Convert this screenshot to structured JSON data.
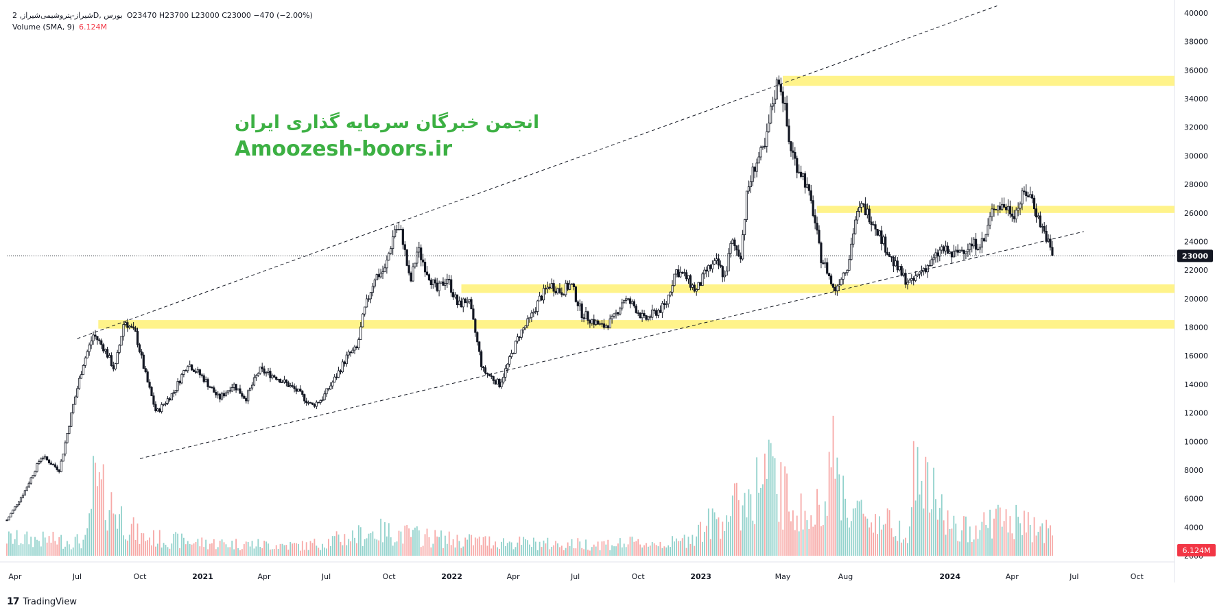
{
  "legend": {
    "symbol_line": "شیراز-پتروشیمی‌شیراز, 2D, بورس",
    "ohlc": "O23470  H23700  L23000  C23000  −470 (−2.00%)",
    "volume_label": "Volume (SMA, 9)",
    "volume_value": "6.124M"
  },
  "watermark": {
    "line1": "انجمن خبرگان سرمایه گذاری ایران",
    "line2": "Amoozesh-boors.ir"
  },
  "footer": {
    "brand": "TradingView"
  },
  "badges": {
    "last_price": "23000",
    "volume": "6.124M"
  },
  "colors": {
    "up": "#26a69a",
    "down": "#ef5350",
    "candle": "#131722",
    "zone": "#fff176",
    "background": "#ffffff",
    "badge_volume": "#f23645",
    "watermark": "#3cb043"
  },
  "chart_data": {
    "type": "candlestick",
    "interval": "2D",
    "last_price": 23000,
    "x_axis": {
      "range": [
        "2020-03-20",
        "2024-11-25"
      ],
      "ticks": [
        {
          "label": "Apr",
          "date": "2020-04-01"
        },
        {
          "label": "Jul",
          "date": "2020-07-01"
        },
        {
          "label": "Oct",
          "date": "2020-10-01"
        },
        {
          "label": "2021",
          "date": "2021-01-01"
        },
        {
          "label": "Apr",
          "date": "2021-04-01"
        },
        {
          "label": "Jul",
          "date": "2021-07-01"
        },
        {
          "label": "Oct",
          "date": "2021-10-01"
        },
        {
          "label": "2022",
          "date": "2022-01-01"
        },
        {
          "label": "Apr",
          "date": "2022-04-01"
        },
        {
          "label": "Jul",
          "date": "2022-07-01"
        },
        {
          "label": "Oct",
          "date": "2022-10-01"
        },
        {
          "label": "2023",
          "date": "2023-01-01"
        },
        {
          "label": "May",
          "date": "2023-05-01"
        },
        {
          "label": "Aug",
          "date": "2023-08-01"
        },
        {
          "label": "2024",
          "date": "2024-01-01"
        },
        {
          "label": "Apr",
          "date": "2024-04-01"
        },
        {
          "label": "Jul",
          "date": "2024-07-01"
        },
        {
          "label": "Oct",
          "date": "2024-10-01"
        }
      ]
    },
    "y_axis": {
      "range": [
        2000,
        40000
      ],
      "ticks": [
        2000,
        4000,
        6000,
        8000,
        10000,
        12000,
        14000,
        16000,
        18000,
        20000,
        22000,
        24000,
        26000,
        28000,
        30000,
        32000,
        34000,
        36000,
        38000,
        40000
      ]
    },
    "price_path": [
      [
        "2020-03-20",
        4500
      ],
      [
        "2020-04-15",
        6500
      ],
      [
        "2020-05-10",
        9000
      ],
      [
        "2020-06-05",
        8000
      ],
      [
        "2020-06-25",
        12500
      ],
      [
        "2020-07-10",
        15500
      ],
      [
        "2020-07-25",
        17500
      ],
      [
        "2020-08-10",
        16500
      ],
      [
        "2020-08-25",
        15000
      ],
      [
        "2020-09-08",
        18500
      ],
      [
        "2020-09-25",
        17500
      ],
      [
        "2020-10-10",
        14500
      ],
      [
        "2020-10-25",
        12000
      ],
      [
        "2020-11-20",
        13500
      ],
      [
        "2020-12-10",
        15500
      ],
      [
        "2021-01-01",
        14500
      ],
      [
        "2021-01-25",
        13000
      ],
      [
        "2021-02-15",
        14000
      ],
      [
        "2021-03-05",
        13000
      ],
      [
        "2021-03-25",
        15000
      ],
      [
        "2021-04-20",
        14500
      ],
      [
        "2021-05-20",
        13500
      ],
      [
        "2021-06-10",
        12500
      ],
      [
        "2021-06-25",
        13000
      ],
      [
        "2021-07-15",
        14500
      ],
      [
        "2021-08-01",
        16000
      ],
      [
        "2021-08-15",
        16500
      ],
      [
        "2021-08-25",
        19000
      ],
      [
        "2021-09-10",
        21500
      ],
      [
        "2021-09-25",
        22000
      ],
      [
        "2021-10-10",
        25000
      ],
      [
        "2021-10-20",
        24500
      ],
      [
        "2021-11-01",
        21000
      ],
      [
        "2021-11-12",
        23500
      ],
      [
        "2021-11-25",
        22000
      ],
      [
        "2021-12-10",
        20500
      ],
      [
        "2021-12-25",
        21500
      ],
      [
        "2022-01-10",
        19500
      ],
      [
        "2022-01-25",
        20000
      ],
      [
        "2022-02-05",
        17500
      ],
      [
        "2022-02-15",
        15000
      ],
      [
        "2022-02-28",
        14500
      ],
      [
        "2022-03-12",
        14000
      ],
      [
        "2022-03-25",
        15500
      ],
      [
        "2022-04-10",
        17500
      ],
      [
        "2022-04-25",
        18500
      ],
      [
        "2022-05-10",
        20000
      ],
      [
        "2022-05-25",
        21000
      ],
      [
        "2022-06-10",
        20500
      ],
      [
        "2022-06-25",
        21000
      ],
      [
        "2022-07-10",
        19000
      ],
      [
        "2022-07-25",
        18500
      ],
      [
        "2022-08-10",
        18000
      ],
      [
        "2022-08-25",
        18500
      ],
      [
        "2022-09-10",
        20000
      ],
      [
        "2022-09-25",
        19500
      ],
      [
        "2022-10-10",
        18500
      ],
      [
        "2022-10-25",
        19000
      ],
      [
        "2022-11-10",
        19500
      ],
      [
        "2022-11-25",
        22000
      ],
      [
        "2022-12-10",
        21500
      ],
      [
        "2022-12-25",
        20500
      ],
      [
        "2023-01-10",
        22000
      ],
      [
        "2023-01-25",
        22500
      ],
      [
        "2023-02-05",
        21500
      ],
      [
        "2023-02-15",
        24000
      ],
      [
        "2023-02-28",
        23000
      ],
      [
        "2023-03-10",
        27500
      ],
      [
        "2023-03-22",
        29500
      ],
      [
        "2023-04-05",
        30500
      ],
      [
        "2023-04-15",
        33500
      ],
      [
        "2023-04-25",
        35500
      ],
      [
        "2023-05-02",
        34000
      ],
      [
        "2023-05-10",
        31000
      ],
      [
        "2023-05-20",
        29500
      ],
      [
        "2023-06-01",
        28500
      ],
      [
        "2023-06-15",
        26000
      ],
      [
        "2023-06-25",
        23000
      ],
      [
        "2023-07-05",
        22000
      ],
      [
        "2023-07-15",
        20500
      ],
      [
        "2023-07-25",
        21500
      ],
      [
        "2023-08-05",
        22500
      ],
      [
        "2023-08-15",
        25500
      ],
      [
        "2023-08-25",
        26500
      ],
      [
        "2023-09-10",
        25500
      ],
      [
        "2023-09-25",
        24000
      ],
      [
        "2023-10-10",
        22500
      ],
      [
        "2023-10-25",
        21500
      ],
      [
        "2023-11-05",
        21000
      ],
      [
        "2023-11-20",
        22000
      ],
      [
        "2023-12-05",
        22500
      ],
      [
        "2023-12-20",
        23500
      ],
      [
        "2024-01-05",
        23000
      ],
      [
        "2024-01-20",
        23500
      ],
      [
        "2024-02-05",
        23800
      ],
      [
        "2024-02-20",
        24000
      ],
      [
        "2024-03-05",
        26500
      ],
      [
        "2024-03-20",
        26500
      ],
      [
        "2024-04-05",
        26000
      ],
      [
        "2024-04-20",
        27500
      ],
      [
        "2024-05-01",
        27000
      ],
      [
        "2024-05-10",
        25500
      ],
      [
        "2024-05-20",
        24500
      ],
      [
        "2024-05-30",
        23000
      ]
    ],
    "volume_path": [
      [
        "2020-03-20",
        1.2
      ],
      [
        "2020-07-15",
        1.0
      ],
      [
        "2020-07-25",
        4.9
      ],
      [
        "2020-10-01",
        1.3
      ],
      [
        "2021-01-01",
        0.9
      ],
      [
        "2021-06-01",
        0.7
      ],
      [
        "2021-09-15",
        1.7
      ],
      [
        "2022-01-01",
        1.1
      ],
      [
        "2022-06-01",
        0.8
      ],
      [
        "2022-12-01",
        0.9
      ],
      [
        "2023-03-01",
        3.6
      ],
      [
        "2023-04-10",
        5.8
      ],
      [
        "2023-05-01",
        4.2
      ],
      [
        "2023-06-15",
        2.2
      ],
      [
        "2023-07-10",
        6.8
      ],
      [
        "2023-08-10",
        3.1
      ],
      [
        "2023-11-01",
        1.8
      ],
      [
        "2023-11-10",
        6.1
      ],
      [
        "2024-01-10",
        1.6
      ],
      [
        "2024-03-10",
        2.6
      ],
      [
        "2024-05-20",
        1.8
      ]
    ],
    "trendlines": [
      {
        "from": [
          "2020-07-01",
          17200
        ],
        "to": [
          "2024-03-10",
          40500
        ],
        "style": "dashed"
      },
      {
        "from": [
          "2020-10-01",
          8800
        ],
        "to": [
          "2024-07-15",
          24700
        ],
        "style": "dashed"
      }
    ],
    "zones": [
      {
        "from_date": "2023-05-01",
        "low": 34900,
        "high": 35600
      },
      {
        "from_date": "2023-06-20",
        "low": 26000,
        "high": 26500
      },
      {
        "from_date": "2022-01-15",
        "low": 20400,
        "high": 21000
      },
      {
        "from_date": "2020-08-01",
        "low": 17900,
        "high": 18500
      }
    ],
    "current_price_line": 23000
  }
}
